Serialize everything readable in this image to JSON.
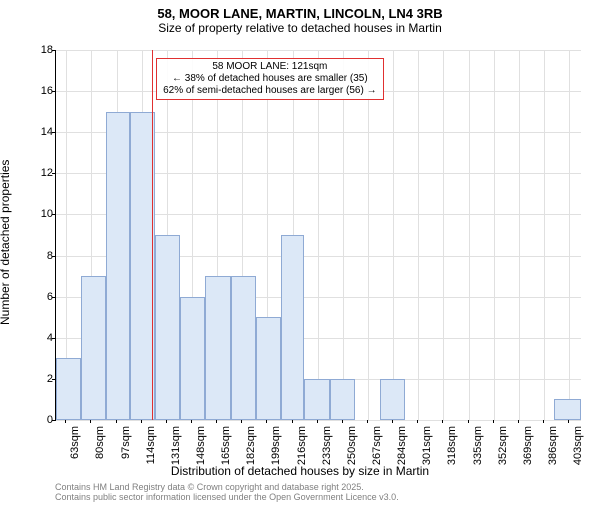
{
  "chart": {
    "type": "histogram",
    "title_line1": "58, MOOR LANE, MARTIN, LINCOLN, LN4 3RB",
    "title_line2": "Size of property relative to detached houses in Martin",
    "title_fontsize": 13,
    "subtitle_fontsize": 12,
    "xlabel": "Distribution of detached houses by size in Martin",
    "ylabel": "Number of detached properties",
    "label_fontsize": 12,
    "tick_fontsize": 11,
    "background_color": "#ffffff",
    "grid_color": "#e0e0e0",
    "bar_fill": "#dce8f7",
    "bar_stroke": "#8faad4",
    "marker_color": "#e03030",
    "ylim": [
      0,
      18
    ],
    "yticks": [
      0,
      2,
      4,
      6,
      8,
      10,
      12,
      14,
      16,
      18
    ],
    "xticks": [
      "63sqm",
      "80sqm",
      "97sqm",
      "114sqm",
      "131sqm",
      "148sqm",
      "165sqm",
      "182sqm",
      "199sqm",
      "216sqm",
      "233sqm",
      "250sqm",
      "267sqm",
      "284sqm",
      "301sqm",
      "318sqm",
      "335sqm",
      "352sqm",
      "369sqm",
      "386sqm",
      "403sqm"
    ],
    "xtick_positions": [
      63,
      80,
      97,
      114,
      131,
      148,
      165,
      182,
      199,
      216,
      233,
      250,
      267,
      284,
      301,
      318,
      335,
      352,
      369,
      386,
      403
    ],
    "x_range": [
      56,
      411
    ],
    "marker_x": 121,
    "bars": [
      {
        "x0": 56,
        "x1": 73,
        "y": 3
      },
      {
        "x0": 73,
        "x1": 90,
        "y": 7
      },
      {
        "x0": 90,
        "x1": 106,
        "y": 15
      },
      {
        "x0": 106,
        "x1": 123,
        "y": 15
      },
      {
        "x0": 123,
        "x1": 140,
        "y": 9
      },
      {
        "x0": 140,
        "x1": 157,
        "y": 6
      },
      {
        "x0": 157,
        "x1": 174,
        "y": 7
      },
      {
        "x0": 174,
        "x1": 191,
        "y": 7
      },
      {
        "x0": 191,
        "x1": 208,
        "y": 5
      },
      {
        "x0": 208,
        "x1": 224,
        "y": 9
      },
      {
        "x0": 224,
        "x1": 241,
        "y": 2
      },
      {
        "x0": 241,
        "x1": 258,
        "y": 2
      },
      {
        "x0": 258,
        "x1": 275,
        "y": 0
      },
      {
        "x0": 275,
        "x1": 292,
        "y": 2
      },
      {
        "x0": 292,
        "x1": 309,
        "y": 0
      },
      {
        "x0": 309,
        "x1": 326,
        "y": 0
      },
      {
        "x0": 326,
        "x1": 343,
        "y": 0
      },
      {
        "x0": 343,
        "x1": 359,
        "y": 0
      },
      {
        "x0": 359,
        "x1": 376,
        "y": 0
      },
      {
        "x0": 376,
        "x1": 393,
        "y": 0
      },
      {
        "x0": 393,
        "x1": 411,
        "y": 1
      }
    ],
    "annotation": {
      "line1": "58 MOOR LANE: 121sqm",
      "line2": "← 38% of detached houses are smaller (35)",
      "line3": "62% of semi-detached houses are larger (56) →",
      "fontsize": 10
    },
    "attribution": {
      "line1": "Contains HM Land Registry data © Crown copyright and database right 2025.",
      "line2": "Contains public sector information licensed under the Open Government Licence v3.0.",
      "fontsize": 9,
      "color": "#808080"
    }
  }
}
